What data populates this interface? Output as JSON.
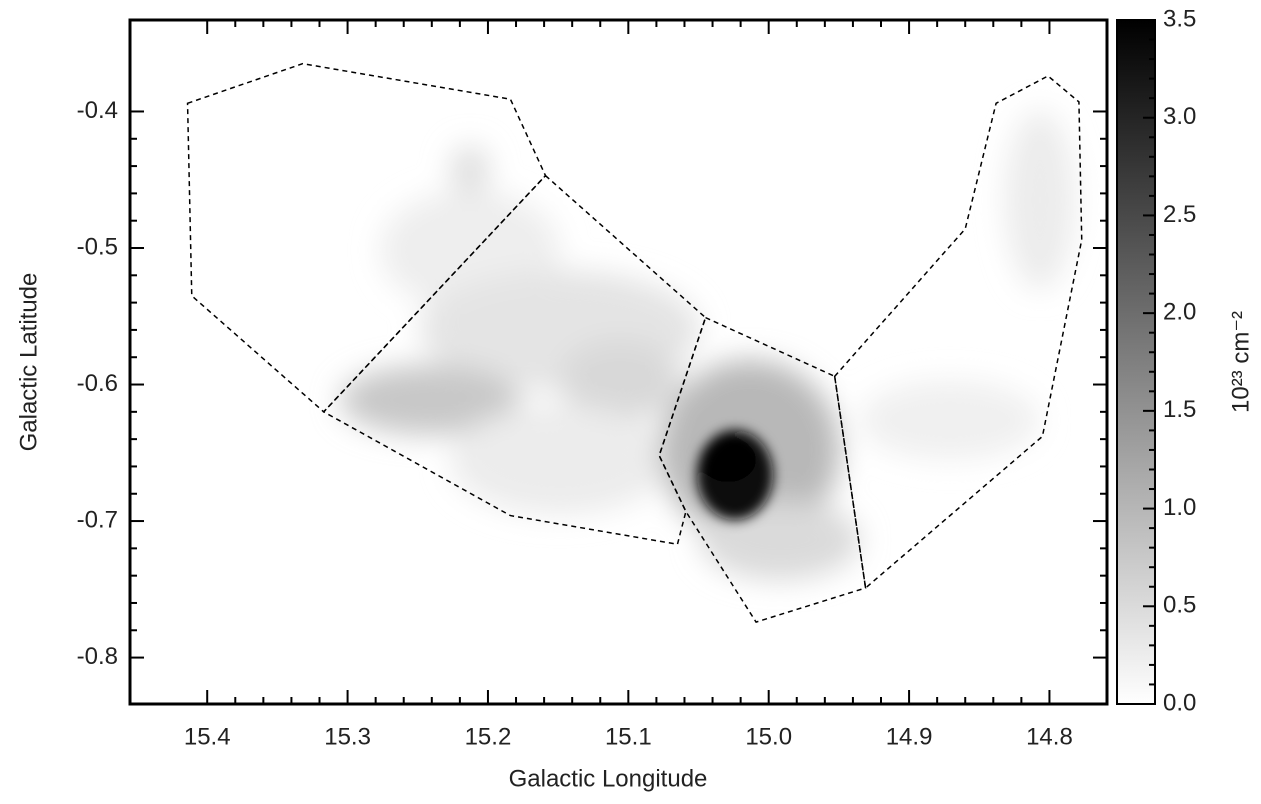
{
  "chart_data": {
    "type": "image",
    "x_label": "Galactic Longitude",
    "y_label": "Galactic Latitude",
    "xlim": [
      15.455,
      14.759
    ],
    "xticks": [
      15.4,
      15.3,
      15.2,
      15.1,
      {
        "value": 15.0,
        "label": "15.0"
      },
      14.9,
      14.8
    ],
    "ylim": [
      -0.834,
      -0.333
    ],
    "yticks": [
      -0.4,
      -0.5,
      -0.6,
      -0.7,
      -0.8
    ],
    "colorbar": {
      "label": "10²³ cm⁻²",
      "lim": [
        0,
        3.5
      ],
      "ticks": [
        {
          "value": 0,
          "label": "0.0"
        },
        0.5,
        {
          "value": 1,
          "label": "1.0"
        },
        1.5,
        {
          "value": 2,
          "label": "2.0"
        },
        2.5,
        {
          "value": 3,
          "label": "3.0"
        },
        3.5
      ]
    },
    "regions": [
      {
        "l": [
          15.414,
          15.332,
          15.184,
          15.159,
          15.317,
          15.411
        ],
        "b": [
          -0.394,
          -0.365,
          -0.391,
          -0.447,
          -0.62,
          -0.535
        ]
      },
      {
        "l": [
          15.159,
          15.045,
          15.078,
          15.059,
          15.065,
          15.184,
          15.317
        ],
        "b": [
          -0.447,
          -0.551,
          -0.652,
          -0.693,
          -0.717,
          -0.696,
          -0.62
        ]
      },
      {
        "l": [
          15.045,
          14.953,
          14.931,
          15.009,
          15.059,
          15.078
        ],
        "b": [
          -0.551,
          -0.594,
          -0.749,
          -0.774,
          -0.693,
          -0.652
        ]
      },
      {
        "l": [
          14.953,
          14.86,
          14.838,
          14.801,
          14.779,
          14.777,
          14.805,
          14.931
        ],
        "b": [
          -0.594,
          -0.486,
          -0.394,
          -0.374,
          -0.393,
          -0.494,
          -0.638,
          -0.749
        ]
      }
    ]
  }
}
